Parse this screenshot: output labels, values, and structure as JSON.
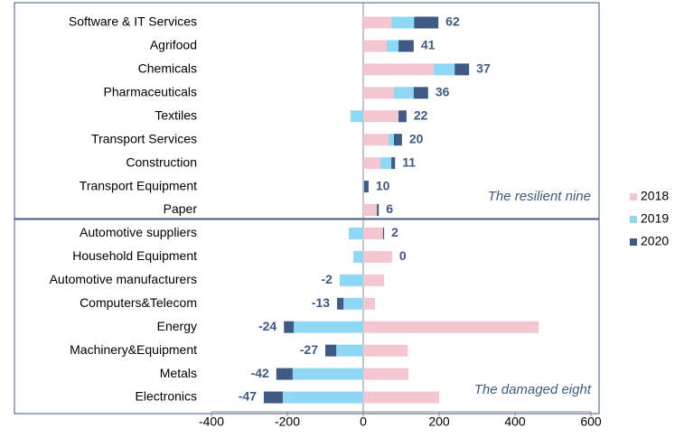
{
  "chart_data": {
    "type": "diverging-stacked-bar",
    "categories": [
      "Software & IT Services",
      "Agrifood",
      "Chemicals",
      "Pharmaceuticals",
      "Textiles",
      "Transport Services",
      "Construction",
      "Transport Equipment",
      "Paper",
      "Automotive suppliers",
      "Household Equipment",
      "Automotive manufacturers",
      "Computers&Telecom",
      "Energy",
      "Machinery&Equipment",
      "Metals",
      "Electronics"
    ],
    "series": [
      {
        "name": "2018",
        "color": "#f4c6cf",
        "values": [
          74,
          62,
          186,
          81,
          93,
          67,
          45,
          0,
          36,
          52,
          76,
          55,
          31,
          462,
          117,
          119,
          200
        ]
      },
      {
        "name": "2019",
        "color": "#8fd8f5",
        "values": [
          60,
          31,
          55,
          52,
          -33,
          14,
          29,
          2,
          0,
          -38,
          -26,
          -62,
          -52,
          -183,
          -71,
          -186,
          -212
        ]
      },
      {
        "name": "2020",
        "color": "#3e5a85",
        "values": [
          64,
          40,
          38,
          38,
          21,
          21,
          10,
          12,
          5,
          3,
          0,
          0,
          -17,
          -26,
          -29,
          -43,
          -50
        ]
      }
    ],
    "labels": [
      62,
      41,
      37,
      36,
      22,
      20,
      11,
      10,
      6,
      2,
      0,
      -2,
      -13,
      -24,
      -27,
      -42,
      -47
    ],
    "annotations": [
      "The resilient nine",
      "The damaged eight"
    ],
    "xlim": [
      -400,
      600
    ],
    "xticks": [
      -400,
      -200,
      0,
      200,
      400,
      600
    ]
  }
}
